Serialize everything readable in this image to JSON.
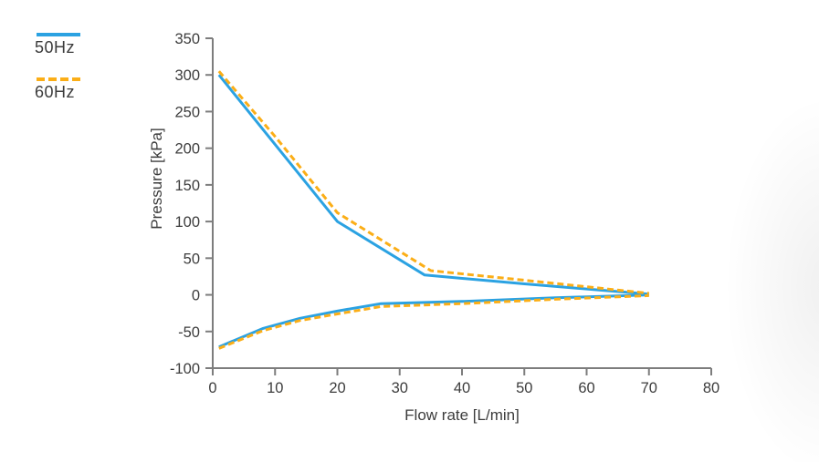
{
  "legend": {
    "items": [
      {
        "label": "50Hz",
        "color": "#2BA2E2",
        "style": "solid"
      },
      {
        "label": "60Hz",
        "color": "#FBAE17",
        "style": "dashed"
      }
    ]
  },
  "chart_data": {
    "type": "line",
    "title": "",
    "xlabel": "Flow rate [L/min]",
    "ylabel": "Pressure [kPa]",
    "xlim": [
      0,
      80
    ],
    "ylim": [
      -100,
      350
    ],
    "xticks": [
      0,
      10,
      20,
      30,
      40,
      50,
      60,
      70,
      80
    ],
    "yticks": [
      350,
      300,
      250,
      200,
      150,
      100,
      50,
      0,
      -50,
      -100
    ],
    "grid": false,
    "legend_position": "top-left",
    "axis_color": "#7d7d7d",
    "tick_label_color": "#3d3d3d",
    "series": [
      {
        "name": "50Hz",
        "color": "#2BA2E2",
        "dash": "solid",
        "segments": [
          [
            [
              1,
              300
            ],
            [
              10,
              205
            ],
            [
              20,
              100
            ],
            [
              34,
              27
            ],
            [
              50,
              15
            ],
            [
              70,
              1
            ]
          ],
          [
            [
              1,
              -71
            ],
            [
              8,
              -46
            ],
            [
              14,
              -32
            ],
            [
              20,
              -22
            ],
            [
              27,
              -12
            ],
            [
              40,
              -9
            ],
            [
              55,
              -4
            ],
            [
              70,
              0
            ]
          ]
        ]
      },
      {
        "name": "60Hz",
        "color": "#FBAE17",
        "dash": "dashed",
        "segments": [
          [
            [
              1,
              305
            ],
            [
              10,
              216
            ],
            [
              20,
              112
            ],
            [
              35,
              33
            ],
            [
              50,
              20
            ],
            [
              70,
              2
            ]
          ],
          [
            [
              1,
              -73
            ],
            [
              8,
              -49
            ],
            [
              14,
              -35
            ],
            [
              20,
              -26
            ],
            [
              27,
              -16
            ],
            [
              40,
              -12
            ],
            [
              55,
              -6
            ],
            [
              70,
              -1
            ]
          ]
        ]
      }
    ]
  }
}
